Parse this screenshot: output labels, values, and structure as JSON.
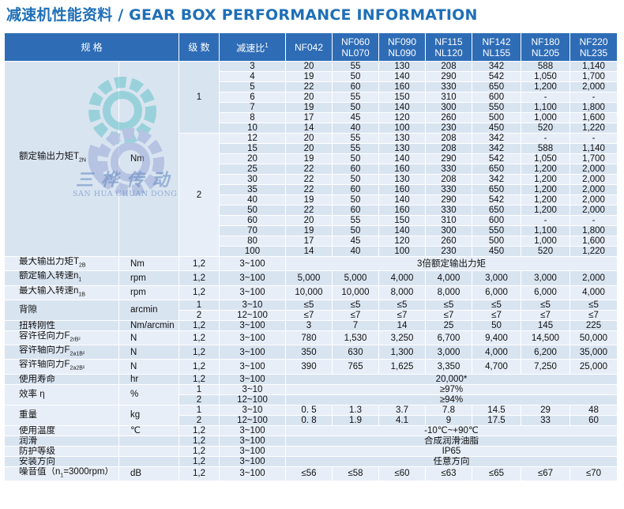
{
  "title": "减速机性能资料 / GEAR BOX PERFORMANCE INFORMATION",
  "watermark": {
    "cn": "三桦传动",
    "en": "SAN HUA CHUAN DONG",
    "icon": "gears-logo-icon",
    "colors": [
      "#66c2c9",
      "#9aa9d6"
    ]
  },
  "colors": {
    "header": "#2e6cb6",
    "row": "#d9e4f1",
    "row_alt": "#e7eef7",
    "title": "#1f6fb7"
  },
  "header": {
    "spec": "规 格",
    "stage": "级 数",
    "ratio": "减速比",
    "ratio_sup": "1",
    "models": [
      {
        "line1": "NF042",
        "line2": ""
      },
      {
        "line1": "NF060",
        "line2": "NL070"
      },
      {
        "line1": "NF090",
        "line2": "NL090"
      },
      {
        "line1": "NF115",
        "line2": "NL120"
      },
      {
        "line1": "NF142",
        "line2": "NL155"
      },
      {
        "line1": "NF180",
        "line2": "NL205"
      },
      {
        "line1": "NF220",
        "line2": "NL235"
      }
    ]
  },
  "torque": {
    "label": "额定输出力矩T",
    "label_sub": "2N",
    "unit": "Nm",
    "stage1": "1",
    "stage2": "2",
    "rows1": [
      {
        "ratio": "3",
        "v": [
          "20",
          "55",
          "130",
          "208",
          "342",
          "588",
          "1,140"
        ]
      },
      {
        "ratio": "4",
        "v": [
          "19",
          "50",
          "140",
          "290",
          "542",
          "1,050",
          "1,700"
        ]
      },
      {
        "ratio": "5",
        "v": [
          "22",
          "60",
          "160",
          "330",
          "650",
          "1,200",
          "2,000"
        ]
      },
      {
        "ratio": "6",
        "v": [
          "20",
          "55",
          "150",
          "310",
          "600",
          "-",
          "-"
        ]
      },
      {
        "ratio": "7",
        "v": [
          "19",
          "50",
          "140",
          "300",
          "550",
          "1,100",
          "1,800"
        ]
      },
      {
        "ratio": "8",
        "v": [
          "17",
          "45",
          "120",
          "260",
          "500",
          "1,000",
          "1,600"
        ]
      },
      {
        "ratio": "10",
        "v": [
          "14",
          "40",
          "100",
          "230",
          "450",
          "520",
          "1,220"
        ]
      }
    ],
    "rows2": [
      {
        "ratio": "12",
        "v": [
          "20",
          "55",
          "130",
          "208",
          "342",
          "-",
          "-"
        ]
      },
      {
        "ratio": "15",
        "v": [
          "20",
          "55",
          "130",
          "208",
          "342",
          "588",
          "1,140"
        ]
      },
      {
        "ratio": "20",
        "v": [
          "19",
          "50",
          "140",
          "290",
          "542",
          "1,050",
          "1,700"
        ]
      },
      {
        "ratio": "25",
        "v": [
          "22",
          "60",
          "160",
          "330",
          "650",
          "1,200",
          "2,000"
        ]
      },
      {
        "ratio": "30",
        "v": [
          "22",
          "50",
          "130",
          "208",
          "342",
          "1,200",
          "2,000"
        ]
      },
      {
        "ratio": "35",
        "v": [
          "22",
          "60",
          "160",
          "330",
          "650",
          "1,200",
          "2,000"
        ]
      },
      {
        "ratio": "40",
        "v": [
          "19",
          "50",
          "140",
          "290",
          "542",
          "1,200",
          "2,000"
        ]
      },
      {
        "ratio": "50",
        "v": [
          "22",
          "60",
          "160",
          "330",
          "650",
          "1,200",
          "2,000"
        ]
      },
      {
        "ratio": "60",
        "v": [
          "20",
          "55",
          "150",
          "310",
          "600",
          "-",
          "-"
        ]
      },
      {
        "ratio": "70",
        "v": [
          "19",
          "50",
          "140",
          "300",
          "550",
          "1,100",
          "1,800"
        ]
      },
      {
        "ratio": "80",
        "v": [
          "17",
          "45",
          "120",
          "260",
          "500",
          "1,000",
          "1,600"
        ]
      },
      {
        "ratio": "100",
        "v": [
          "14",
          "40",
          "100",
          "230",
          "450",
          "520",
          "1,220"
        ]
      }
    ]
  },
  "rows": [
    {
      "label": "最大输出力矩T",
      "sub": "2B",
      "unit": "Nm",
      "stage": "1,2",
      "ratio": "3~100",
      "span": "3倍额定输出力矩"
    },
    {
      "label": "额定输入转速n",
      "sub": "1",
      "unit": "rpm",
      "stage": "1,2",
      "ratio": "3~100",
      "v": [
        "5,000",
        "5,000",
        "4,000",
        "4,000",
        "3,000",
        "3,000",
        "2,000"
      ]
    },
    {
      "label": "最大输入转速n",
      "sub": "1B",
      "unit": "rpm",
      "stage": "1,2",
      "ratio": "3~100",
      "v": [
        "10,000",
        "10,000",
        "8,000",
        "8,000",
        "6,000",
        "6,000",
        "4,000"
      ]
    },
    {
      "label": "背隙",
      "unit": "arcmin",
      "group": [
        {
          "stage": "1",
          "ratio": "3~10",
          "v": [
            "≤5",
            "≤5",
            "≤5",
            "≤5",
            "≤5",
            "≤5",
            "≤5"
          ]
        },
        {
          "stage": "2",
          "ratio": "12~100",
          "v": [
            "≤7",
            "≤7",
            "≤7",
            "≤7",
            "≤7",
            "≤7",
            "≤7"
          ]
        }
      ]
    },
    {
      "label": "扭转刚性",
      "unit": "Nm/arcmin",
      "stage": "1,2",
      "ratio": "3~100",
      "v": [
        "3",
        "7",
        "14",
        "25",
        "50",
        "145",
        "225"
      ]
    },
    {
      "label": "容许径向力F",
      "sub": "2rB²",
      "unit": "N",
      "stage": "1,2",
      "ratio": "3~100",
      "v": [
        "780",
        "1,530",
        "3,250",
        "6,700",
        "9,400",
        "14,500",
        "50,000"
      ]
    },
    {
      "label": "容许轴向力F",
      "sub": "2a1B²",
      "unit": "N",
      "stage": "1,2",
      "ratio": "3~100",
      "v": [
        "350",
        "630",
        "1,300",
        "3,000",
        "4,000",
        "6,200",
        "35,000"
      ]
    },
    {
      "label": "容许轴向力F",
      "sub": "2a2B²",
      "unit": "N",
      "stage": "1,2",
      "ratio": "3~100",
      "v": [
        "390",
        "765",
        "1,625",
        "3,350",
        "4,700",
        "7,250",
        "25,000"
      ]
    },
    {
      "label": "使用寿命",
      "unit": "hr",
      "stage": "1,2",
      "ratio": "3~100",
      "span": "20,000*"
    },
    {
      "label": "效率 η",
      "unit": "%",
      "group": [
        {
          "stage": "1",
          "ratio": "3~10",
          "span": "≥97%"
        },
        {
          "stage": "2",
          "ratio": "12~100",
          "span": "≥94%"
        }
      ]
    },
    {
      "label": "重量",
      "unit": "kg",
      "group": [
        {
          "stage": "1",
          "ratio": "3~10",
          "v": [
            "0. 5",
            "1.3",
            "3.7",
            "7.8",
            "14.5",
            "29",
            "48"
          ]
        },
        {
          "stage": "2",
          "ratio": "12~100",
          "v": [
            "0. 8",
            "1.9",
            "4.1",
            "9",
            "17.5",
            "33",
            "60"
          ]
        }
      ]
    },
    {
      "label": "使用温度",
      "unit": "℃",
      "stage": "1,2",
      "ratio": "3~100",
      "span": "-10℃~+90℃"
    },
    {
      "label": "润滑",
      "unit": "",
      "stage": "1,2",
      "ratio": "3~100",
      "span": "合成润滑油脂"
    },
    {
      "label": "防护等级",
      "unit": "",
      "stage": "1,2",
      "ratio": "3~100",
      "span": "IP65"
    },
    {
      "label": "安装方向",
      "unit": "",
      "stage": "1,2",
      "ratio": "3~100",
      "span": "任意方向"
    },
    {
      "label": "噪音值（n",
      "sub": "1",
      "label_tail": "=3000rpm）",
      "unit": "dB",
      "stage": "1,2",
      "ratio": "3~100",
      "v": [
        "≤56",
        "≤58",
        "≤60",
        "≤63",
        "≤65",
        "≤67",
        "≤70"
      ]
    }
  ]
}
